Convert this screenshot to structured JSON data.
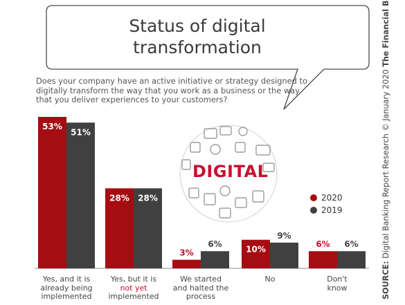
{
  "title_line1": "Status of digital",
  "title_line2": "transformation",
  "question": "Does your company have an active initiative or strategy designed to digitally transform the way that you work as a business or the way that you deliver experiences to your customers?",
  "source_prefix": "SOURCE:",
  "source_text": " Digital Banking Report Research © January 2020 ",
  "source_brand": "The Financial Brand",
  "graphic_word": "DIGITAL",
  "colors": {
    "y2020": "#a50d12",
    "y2019": "#404040",
    "accent_text": "#c8102e"
  },
  "legend": [
    {
      "label": "2020",
      "color": "#a50d12"
    },
    {
      "label": "2019",
      "color": "#404040"
    }
  ],
  "category_labels": [
    {
      "lines": [
        "Yes, and it is",
        "already being",
        "implemented"
      ]
    },
    {
      "lines": [
        "Yes, but it is",
        "not yet",
        "implemented"
      ],
      "highlight_line": 1
    },
    {
      "lines": [
        "We started",
        "and halted the",
        "process"
      ]
    },
    {
      "lines": [
        "No"
      ]
    },
    {
      "lines": [
        "Don't",
        "know"
      ]
    }
  ],
  "chart_data": {
    "type": "bar",
    "categories": [
      "Yes, and it is already being implemented",
      "Yes, but it is not yet implemented",
      "We started and halted the process",
      "No",
      "Don't know"
    ],
    "series": [
      {
        "name": "2020",
        "values": [
          53,
          28,
          3,
          10,
          6
        ],
        "labels": [
          "53%",
          "28%",
          "3%",
          "10%",
          "6%"
        ]
      },
      {
        "name": "2019",
        "values": [
          51,
          28,
          6,
          9,
          6
        ],
        "labels": [
          "51%",
          "28%",
          "6%",
          "9%",
          "6%"
        ]
      }
    ],
    "ylim": [
      0,
      53
    ],
    "legend_position": "right",
    "grid": false
  }
}
